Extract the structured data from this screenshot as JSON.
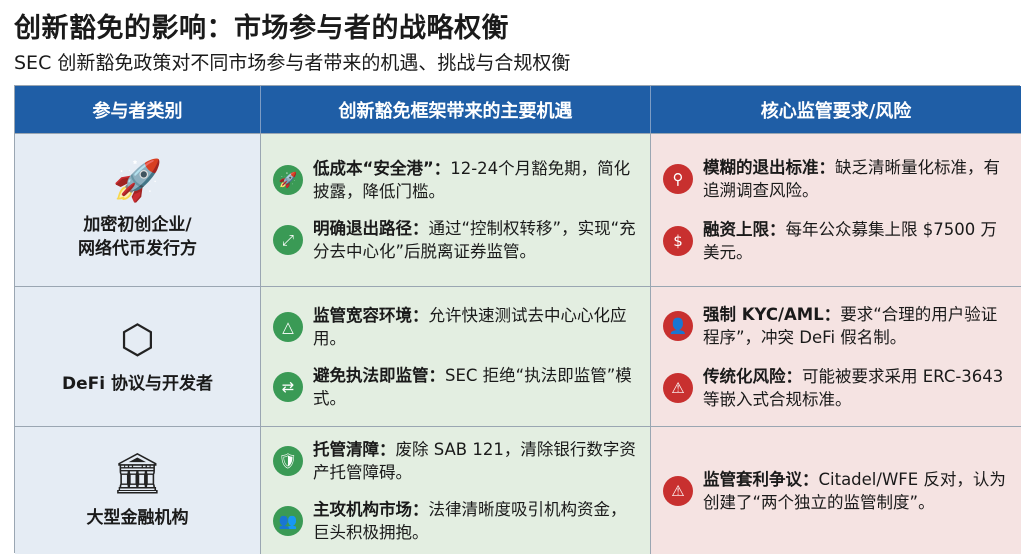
{
  "title": "创新豁免的影响：市场参与者的战略权衡",
  "subtitle": "SEC 创新豁免政策对不同市场参与者带来的机遇、挑战与合规权衡",
  "headers": [
    "参与者类别",
    "创新豁免框架带来的主要机遇",
    "核心监管要求/风险"
  ],
  "colors": {
    "header": "#1f5ea6",
    "opportunity": "#3a9a55",
    "risk": "#c8302f"
  },
  "rows": [
    {
      "category": "加密初创企业/\n网络代币发行方",
      "icon": "rocket-icon",
      "opportunities": [
        {
          "icon": "rocket-icon",
          "head": "低成本“安全港”：",
          "body": "12-24个月豁免期，简化披露，降低门槛。"
        },
        {
          "icon": "arrows-icon",
          "head": "明确退出路径：",
          "body": "通过“控制权转移”，实现“充分去中心化”后脱离证券监管。"
        }
      ],
      "risks": [
        {
          "icon": "search-icon",
          "head": "模糊的退出标准：",
          "body": "缺乏清晰量化标准，有追溯调查风险。"
        },
        {
          "icon": "dollar-icon",
          "head": "融资上限：",
          "body": "每年公众募集上限 $7500 万美元。"
        }
      ]
    },
    {
      "category": "DeFi 协议与开发者",
      "icon": "network-cube-icon",
      "opportunities": [
        {
          "icon": "triangle-nodes-icon",
          "head": "监管宽容环境：",
          "body": "允许快速测试去中心心化应用。"
        },
        {
          "icon": "flow-icon",
          "head": "避免执法即监管：",
          "body": "SEC 拒绝“执法即监管”模式。"
        }
      ],
      "risks": [
        {
          "icon": "user-check-icon",
          "head": "强制 KYC/AML：",
          "body": "要求“合理的用户验证程序”，冲突 DeFi 假名制。"
        },
        {
          "icon": "warning-icon",
          "head": "传统化风险：",
          "body": "可能被要求采用 ERC-3643 等嵌入式合规标准。"
        }
      ]
    },
    {
      "category": "大型金融机构",
      "icon": "bank-icon",
      "opportunities": [
        {
          "icon": "shield-card-icon",
          "head": "托管清障：",
          "body": "废除 SAB 121，清除银行数字资产托管障碍。"
        },
        {
          "icon": "group-icon",
          "head": "主攻机构市场：",
          "body": "法律清晰度吸引机构资金，巨头积极拥抱。"
        }
      ],
      "risks": [
        {
          "icon": "warning-icon",
          "head": "监管套利争议：",
          "body": "Citadel/WFE 反对，认为创建了“两个独立的监管制度”。"
        }
      ]
    }
  ]
}
